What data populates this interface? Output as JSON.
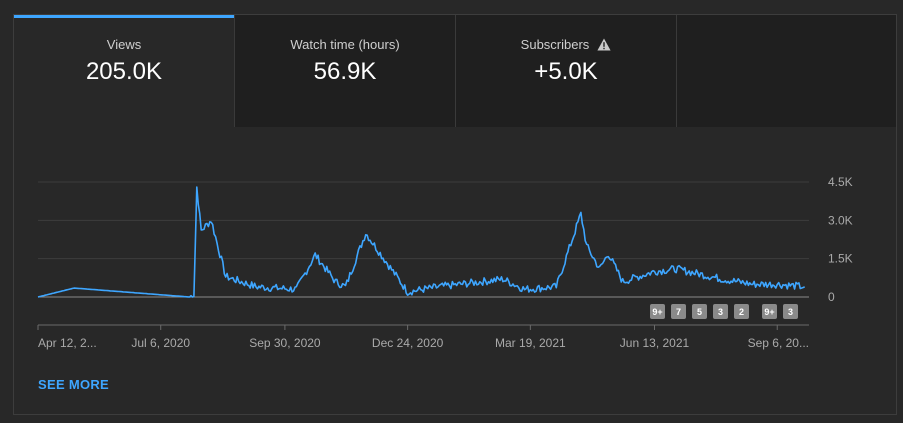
{
  "tabs": [
    {
      "label": "Views",
      "value": "205.0K",
      "active": true
    },
    {
      "label": "Watch time (hours)",
      "value": "56.9K",
      "active": false
    },
    {
      "label": "Subscribers",
      "value": "+5.0K",
      "active": false,
      "icon": "warning-icon"
    },
    {
      "label": "",
      "value": "",
      "active": false
    }
  ],
  "see_more": "SEE MORE",
  "badges": [
    "9+",
    "7",
    "5",
    "3",
    "2",
    "9+",
    "3"
  ],
  "colors": {
    "accent": "#3ea6ff",
    "line": "#3ea6ff"
  },
  "chart_data": {
    "type": "line",
    "x_tick_labels": [
      "Apr 12, 2...",
      "Jul 6, 2020",
      "Sep 30, 2020",
      "Dec 24, 2020",
      "Mar 19, 2021",
      "Jun 13, 2021",
      "Sep 6, 20..."
    ],
    "y_tick_labels": [
      "4.5K",
      "3.0K",
      "1.5K",
      "0"
    ],
    "ylim": [
      0,
      4500
    ],
    "grid": true,
    "series": [
      {
        "x": [
          "2020-04-12",
          "2020-05-07",
          "2020-07-26",
          "2020-07-29",
          "2020-07-31",
          "2020-08-03",
          "2020-08-10",
          "2020-08-20",
          "2020-09-10",
          "2020-10-08",
          "2020-10-21",
          "2020-11-04",
          "2020-11-11",
          "2020-11-25",
          "2020-12-24",
          "2021-01-15",
          "2021-02-28",
          "2021-03-15",
          "2021-04-06",
          "2021-04-23",
          "2021-04-27",
          "2021-05-06",
          "2021-05-12",
          "2021-05-22",
          "2021-06-13",
          "2021-06-28",
          "2021-07-30",
          "2021-08-20",
          "2021-09-06",
          "2021-09-25"
        ],
        "values": [
          0,
          350,
          0,
          100,
          4300,
          2600,
          3000,
          800,
          400,
          300,
          1650,
          600,
          400,
          2500,
          200,
          400,
          700,
          300,
          400,
          3250,
          2000,
          1100,
          1700,
          600,
          1000,
          1100,
          700,
          500,
          500,
          400
        ]
      }
    ]
  }
}
